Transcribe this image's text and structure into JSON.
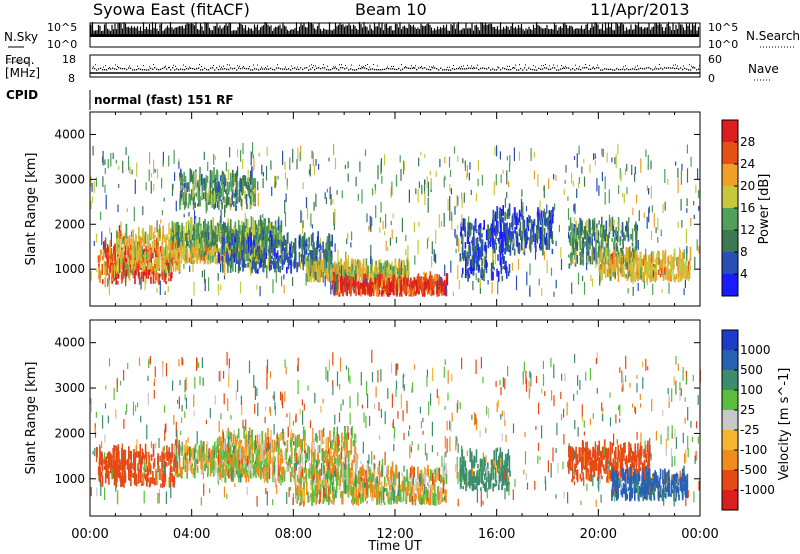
{
  "header": {
    "station": "Syowa East (fitACF)",
    "beam": "Beam 10",
    "date": "11/Apr/2013"
  },
  "side_labels": {
    "nsky": "N.Sky",
    "nsearch": "N.Search",
    "freq_line1": "Freq.",
    "freq_line2": "[MHz]",
    "nave": "Nave",
    "cpid": "CPID"
  },
  "cpid_text": "normal (fast) 151 RF",
  "noise_axis": {
    "left_top": "10^5",
    "left_bottom": "10^0",
    "right_top": "10^5",
    "right_bottom": "10^0"
  },
  "freq_axis": {
    "left_top": "18",
    "left_bottom": "8",
    "right_top": "60",
    "right_bottom": "0"
  },
  "colors": {
    "power_scale": [
      "#1a1aff",
      "#2850b4",
      "#3c7850",
      "#50a05a",
      "#c8c83c",
      "#f0a028",
      "#e65014",
      "#dc1e1e"
    ],
    "velocity_scale": [
      "#dc1e1e",
      "#e64a14",
      "#f08c1e",
      "#f5b432",
      "#c8c8c8",
      "#5abe3c",
      "#3c8c6e",
      "#2860b4",
      "#1e3cc8"
    ]
  },
  "chart_data": [
    {
      "type": "heatmap",
      "title": "",
      "xlabel": "",
      "ylabel": "Slant Range [km]",
      "xlim": [
        0,
        24
      ],
      "ylim": [
        180,
        4500
      ],
      "x_ticks": [
        "00:00",
        "04:00",
        "08:00",
        "12:00",
        "16:00",
        "20:00",
        "00:00"
      ],
      "y_ticks": [
        "1000",
        "2000",
        "3000",
        "4000"
      ],
      "colorbar": {
        "label": "Power [dB]",
        "range": [
          0,
          32
        ],
        "ticks": [
          "4",
          "8",
          "12",
          "16",
          "20",
          "24",
          "28"
        ]
      },
      "regions": [
        {
          "t": [
            0.3,
            3.2
          ],
          "r": [
            650,
            1400
          ],
          "value": 27
        },
        {
          "t": [
            1.0,
            3.5
          ],
          "r": [
            900,
            1700
          ],
          "value": 20
        },
        {
          "t": [
            3.0,
            6.8
          ],
          "r": [
            1100,
            1450
          ],
          "value": 20
        },
        {
          "t": [
            3.2,
            7.5
          ],
          "r": [
            1450,
            1900
          ],
          "value": 13
        },
        {
          "t": [
            3.5,
            6.5
          ],
          "r": [
            2300,
            3000
          ],
          "value": 12
        },
        {
          "t": [
            5.0,
            9.5
          ],
          "r": [
            900,
            1600
          ],
          "value": 8
        },
        {
          "t": [
            8.5,
            12.5
          ],
          "r": [
            700,
            1000
          ],
          "value": 18
        },
        {
          "t": [
            9.5,
            14.0
          ],
          "r": [
            380,
            650
          ],
          "value": 28
        },
        {
          "t": [
            14.5,
            16.5
          ],
          "r": [
            700,
            1900
          ],
          "value": 6
        },
        {
          "t": [
            15.8,
            18.2
          ],
          "r": [
            1300,
            2200
          ],
          "value": 6
        },
        {
          "t": [
            18.8,
            21.5
          ],
          "r": [
            1000,
            1900
          ],
          "value": 12
        },
        {
          "t": [
            20.0,
            23.6
          ],
          "r": [
            700,
            1200
          ],
          "value": 20
        }
      ]
    },
    {
      "type": "heatmap",
      "title": "",
      "xlabel": "Time UT",
      "ylabel": "Slant Range [km]",
      "xlim": [
        0,
        24
      ],
      "ylim": [
        180,
        4500
      ],
      "x_ticks": [
        "00:00",
        "04:00",
        "08:00",
        "12:00",
        "16:00",
        "20:00",
        "00:00"
      ],
      "y_ticks": [
        "1000",
        "2000",
        "3000",
        "4000"
      ],
      "colorbar": {
        "label": "Velocity [m s^-1]",
        "ticks": [
          "1000",
          "500",
          "100",
          "25",
          "-25",
          "-100",
          "-500",
          "-1000"
        ]
      },
      "regions": [
        {
          "t": [
            0.3,
            3.3
          ],
          "r": [
            800,
            1500
          ],
          "value": -300
        },
        {
          "t": [
            3.3,
            7.0
          ],
          "r": [
            1000,
            1600
          ],
          "value": 0
        },
        {
          "t": [
            5.0,
            10.5
          ],
          "r": [
            900,
            1900
          ],
          "value": 0
        },
        {
          "t": [
            8.0,
            14.0
          ],
          "r": [
            400,
            1100
          ],
          "value": 0
        },
        {
          "t": [
            14.5,
            16.5
          ],
          "r": [
            700,
            1400
          ],
          "value": 300
        },
        {
          "t": [
            18.8,
            22.0
          ],
          "r": [
            900,
            1600
          ],
          "value": -300
        },
        {
          "t": [
            20.5,
            23.5
          ],
          "r": [
            500,
            1000
          ],
          "value": 600
        }
      ]
    }
  ]
}
